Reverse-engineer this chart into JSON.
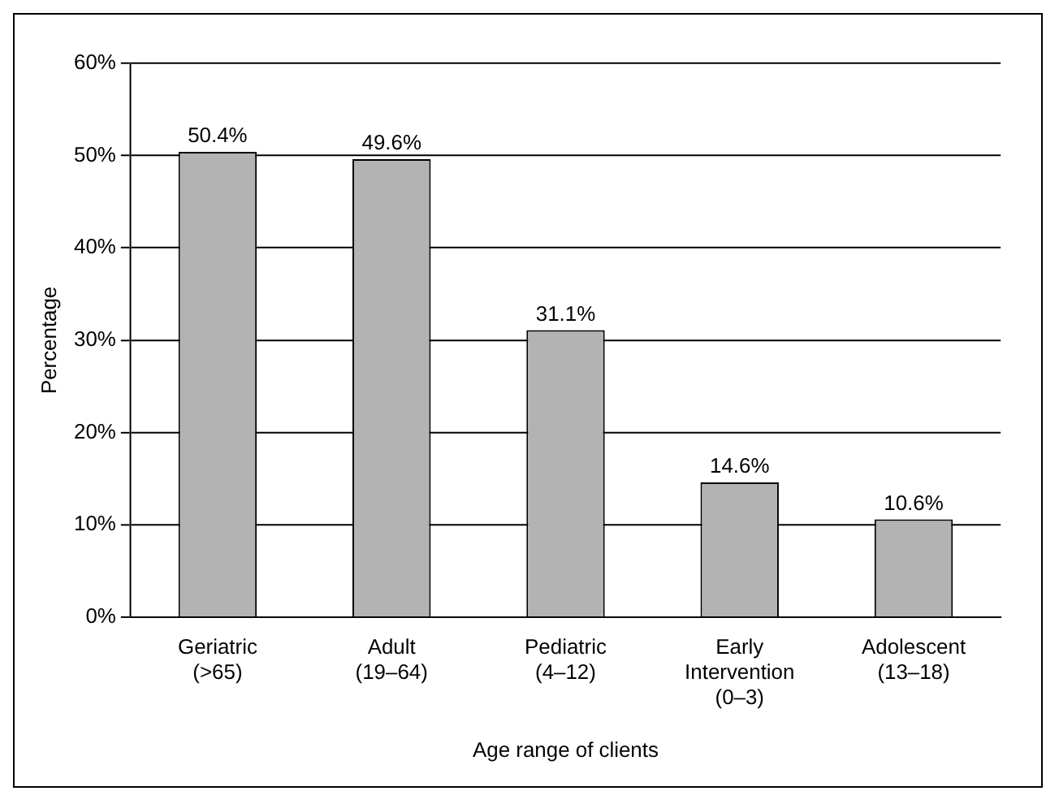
{
  "chart_data": {
    "type": "bar",
    "xlabel": "Age range of clients",
    "ylabel": "Percentage",
    "categories": [
      "Geriatric\n(>65)",
      "Adult\n(19–64)",
      "Pediatric\n(4–12)",
      "Early\nIntervention\n(0–3)",
      "Adolescent\n(13–18)"
    ],
    "values": [
      50.4,
      49.6,
      31.1,
      14.6,
      10.6
    ],
    "value_labels": [
      "50.4%",
      "49.6%",
      "31.1%",
      "14.6%",
      "10.6%"
    ],
    "color": "#b3b3b3",
    "ylim": [
      0,
      60
    ],
    "yticks": [
      {
        "value": 0,
        "label": "0%"
      },
      {
        "value": 10,
        "label": "10%"
      },
      {
        "value": 20,
        "label": "20%"
      },
      {
        "value": 30,
        "label": "30%"
      },
      {
        "value": 40,
        "label": "40%"
      },
      {
        "value": 50,
        "label": "50%"
      },
      {
        "value": 60,
        "label": "60%"
      }
    ],
    "grid": "y",
    "legend": false
  }
}
